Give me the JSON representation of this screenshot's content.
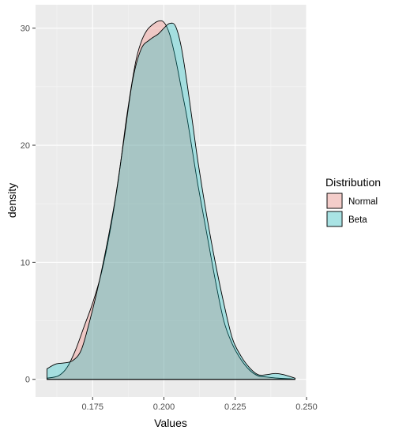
{
  "chart_data": {
    "type": "area",
    "xlabel": "Values",
    "ylabel": "density",
    "xlim": [
      0.155,
      0.25
    ],
    "ylim": [
      -1.5,
      32
    ],
    "x_ticks": [
      0.175,
      0.2,
      0.225,
      0.25
    ],
    "x_tick_labels": [
      "0.175",
      "0.200",
      "0.225",
      "0.250"
    ],
    "y_ticks": [
      0,
      10,
      20,
      30
    ],
    "y_tick_labels": [
      "0",
      "10",
      "20",
      "30"
    ],
    "grid": true,
    "legend": {
      "title": "Distribution",
      "position": "right",
      "entries": [
        "Normal",
        "Beta"
      ]
    },
    "colors": {
      "panel": "#ebebeb",
      "grid_major": "#ffffff",
      "normal_fill": "#f8766d",
      "beta_fill": "#00bfc4",
      "outline": "#000000"
    },
    "series": [
      {
        "name": "Normal",
        "x": [
          0.159,
          0.163,
          0.166,
          0.169,
          0.172,
          0.175,
          0.178,
          0.181,
          0.184,
          0.187,
          0.19,
          0.192,
          0.194,
          0.196,
          0.198,
          0.2,
          0.202,
          0.204,
          0.206,
          0.208,
          0.21,
          0.212,
          0.215,
          0.218,
          0.221,
          0.224,
          0.227,
          0.23,
          0.233,
          0.236,
          0.24,
          0.244,
          0.246
        ],
        "y": [
          0.1,
          0.3,
          1.0,
          2.5,
          4.5,
          6.5,
          9.0,
          12.5,
          17.0,
          22.5,
          27.0,
          28.8,
          29.8,
          30.3,
          30.6,
          30.5,
          29.5,
          27.5,
          25.0,
          22.5,
          19.5,
          16.5,
          12.5,
          8.5,
          5.0,
          3.0,
          1.7,
          0.8,
          0.3,
          0.2,
          0.1,
          0.05,
          0.0
        ]
      },
      {
        "name": "Beta",
        "x": [
          0.159,
          0.162,
          0.165,
          0.168,
          0.171,
          0.174,
          0.177,
          0.18,
          0.183,
          0.186,
          0.189,
          0.192,
          0.195,
          0.198,
          0.2,
          0.202,
          0.204,
          0.206,
          0.208,
          0.21,
          0.212,
          0.215,
          0.218,
          0.221,
          0.224,
          0.227,
          0.23,
          0.233,
          0.236,
          0.239,
          0.242,
          0.246
        ],
        "y": [
          0.9,
          1.3,
          1.4,
          1.6,
          2.5,
          5.0,
          8.0,
          11.5,
          15.5,
          20.5,
          25.5,
          28.2,
          29.0,
          29.5,
          30.0,
          30.4,
          30.2,
          28.5,
          25.5,
          22.0,
          18.5,
          14.0,
          10.0,
          6.5,
          3.5,
          2.0,
          1.0,
          0.4,
          0.4,
          0.5,
          0.4,
          0.1
        ]
      }
    ]
  }
}
